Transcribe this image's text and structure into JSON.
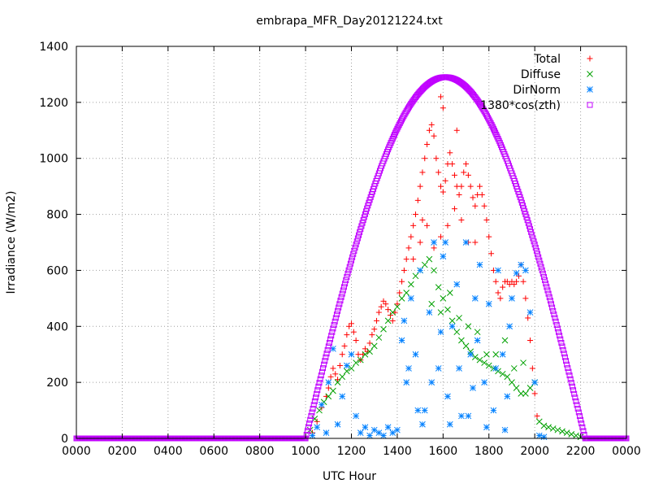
{
  "chart_data": {
    "type": "scatter",
    "title": "embrapa_MFR_Day20121224.txt",
    "xlabel": "UTC Hour",
    "ylabel": "Irradiance (W/m2)",
    "xlim": [
      0,
      24
    ],
    "ylim": [
      0,
      1400
    ],
    "grid": true,
    "legend_position": "top-right",
    "x_ticks": [
      {
        "value": 0,
        "label": "0000"
      },
      {
        "value": 2,
        "label": "0200"
      },
      {
        "value": 4,
        "label": "0400"
      },
      {
        "value": 6,
        "label": "0600"
      },
      {
        "value": 8,
        "label": "0800"
      },
      {
        "value": 10,
        "label": "1000"
      },
      {
        "value": 12,
        "label": "1200"
      },
      {
        "value": 14,
        "label": "1400"
      },
      {
        "value": 16,
        "label": "1600"
      },
      {
        "value": 18,
        "label": "1800"
      },
      {
        "value": 20,
        "label": "2000"
      },
      {
        "value": 22,
        "label": "2200"
      },
      {
        "value": 24,
        "label": "0000"
      }
    ],
    "y_ticks": [
      {
        "value": 0,
        "label": "0"
      },
      {
        "value": 200,
        "label": "200"
      },
      {
        "value": 400,
        "label": "400"
      },
      {
        "value": 600,
        "label": "600"
      },
      {
        "value": 800,
        "label": "800"
      },
      {
        "value": 1000,
        "label": "1000"
      },
      {
        "value": 1200,
        "label": "1200"
      },
      {
        "value": 1400,
        "label": "1400"
      }
    ],
    "series": [
      {
        "name": "Total",
        "marker": "plus",
        "color": "#ff0000",
        "points": [
          [
            10.3,
            20
          ],
          [
            10.5,
            60
          ],
          [
            10.7,
            110
          ],
          [
            10.9,
            150
          ],
          [
            11.0,
            180
          ],
          [
            11.1,
            220
          ],
          [
            11.2,
            250
          ],
          [
            11.3,
            230
          ],
          [
            11.4,
            210
          ],
          [
            11.5,
            260
          ],
          [
            11.6,
            300
          ],
          [
            11.7,
            330
          ],
          [
            11.8,
            370
          ],
          [
            11.9,
            400
          ],
          [
            12.0,
            410
          ],
          [
            12.1,
            380
          ],
          [
            12.2,
            350
          ],
          [
            12.3,
            300
          ],
          [
            12.4,
            280
          ],
          [
            12.5,
            300
          ],
          [
            12.6,
            320
          ],
          [
            12.7,
            310
          ],
          [
            12.8,
            340
          ],
          [
            12.9,
            370
          ],
          [
            13.0,
            390
          ],
          [
            13.1,
            420
          ],
          [
            13.2,
            450
          ],
          [
            13.3,
            470
          ],
          [
            13.4,
            490
          ],
          [
            13.5,
            480
          ],
          [
            13.6,
            460
          ],
          [
            13.7,
            440
          ],
          [
            13.8,
            420
          ],
          [
            13.9,
            450
          ],
          [
            14.0,
            480
          ],
          [
            14.1,
            520
          ],
          [
            14.2,
            560
          ],
          [
            14.3,
            600
          ],
          [
            14.4,
            640
          ],
          [
            14.5,
            680
          ],
          [
            14.6,
            720
          ],
          [
            14.7,
            760
          ],
          [
            14.8,
            800
          ],
          [
            14.9,
            850
          ],
          [
            15.0,
            900
          ],
          [
            15.1,
            950
          ],
          [
            15.2,
            1000
          ],
          [
            15.3,
            1050
          ],
          [
            15.4,
            1100
          ],
          [
            15.5,
            1120
          ],
          [
            15.6,
            1080
          ],
          [
            15.7,
            1000
          ],
          [
            15.8,
            950
          ],
          [
            15.9,
            900
          ],
          [
            16.0,
            880
          ],
          [
            16.1,
            920
          ],
          [
            16.2,
            980
          ],
          [
            16.3,
            1020
          ],
          [
            16.4,
            980
          ],
          [
            16.5,
            940
          ],
          [
            16.6,
            900
          ],
          [
            16.7,
            870
          ],
          [
            16.8,
            900
          ],
          [
            16.9,
            950
          ],
          [
            17.0,
            980
          ],
          [
            17.1,
            940
          ],
          [
            17.2,
            900
          ],
          [
            17.3,
            860
          ],
          [
            17.4,
            830
          ],
          [
            17.5,
            870
          ],
          [
            17.6,
            900
          ],
          [
            17.7,
            870
          ],
          [
            17.8,
            830
          ],
          [
            17.9,
            780
          ],
          [
            18.0,
            720
          ],
          [
            18.1,
            660
          ],
          [
            18.2,
            600
          ],
          [
            18.3,
            560
          ],
          [
            18.4,
            520
          ],
          [
            18.5,
            500
          ],
          [
            18.6,
            540
          ],
          [
            18.7,
            560
          ],
          [
            18.8,
            560
          ],
          [
            18.9,
            550
          ],
          [
            19.0,
            560
          ],
          [
            19.1,
            550
          ],
          [
            19.2,
            560
          ],
          [
            19.3,
            580
          ],
          [
            19.4,
            620
          ],
          [
            19.5,
            560
          ],
          [
            19.6,
            500
          ],
          [
            19.7,
            430
          ],
          [
            19.8,
            350
          ],
          [
            19.9,
            250
          ],
          [
            20.0,
            160
          ],
          [
            20.1,
            80
          ],
          [
            15.3,
            760
          ],
          [
            15.6,
            680
          ],
          [
            15.9,
            720
          ],
          [
            16.2,
            760
          ],
          [
            16.5,
            820
          ],
          [
            16.8,
            780
          ],
          [
            17.1,
            700
          ],
          [
            14.7,
            640
          ],
          [
            15.0,
            700
          ],
          [
            15.9,
            1220
          ],
          [
            16.0,
            1180
          ],
          [
            15.1,
            780
          ],
          [
            16.6,
            1100
          ],
          [
            17.4,
            700
          ]
        ]
      },
      {
        "name": "Diffuse",
        "marker": "cross",
        "color": "#00a000",
        "points": [
          [
            10.2,
            30
          ],
          [
            10.4,
            70
          ],
          [
            10.6,
            100
          ],
          [
            10.8,
            130
          ],
          [
            11.0,
            150
          ],
          [
            11.2,
            170
          ],
          [
            11.4,
            200
          ],
          [
            11.6,
            220
          ],
          [
            11.8,
            240
          ],
          [
            12.0,
            250
          ],
          [
            12.2,
            270
          ],
          [
            12.4,
            280
          ],
          [
            12.6,
            300
          ],
          [
            12.8,
            310
          ],
          [
            13.0,
            330
          ],
          [
            13.2,
            360
          ],
          [
            13.4,
            390
          ],
          [
            13.6,
            420
          ],
          [
            13.8,
            450
          ],
          [
            14.0,
            470
          ],
          [
            14.2,
            500
          ],
          [
            14.4,
            520
          ],
          [
            14.6,
            550
          ],
          [
            14.8,
            580
          ],
          [
            15.0,
            600
          ],
          [
            15.2,
            620
          ],
          [
            15.4,
            640
          ],
          [
            15.6,
            600
          ],
          [
            15.8,
            540
          ],
          [
            16.0,
            500
          ],
          [
            16.2,
            460
          ],
          [
            16.4,
            420
          ],
          [
            16.6,
            380
          ],
          [
            16.8,
            350
          ],
          [
            17.0,
            330
          ],
          [
            17.2,
            310
          ],
          [
            17.4,
            290
          ],
          [
            17.6,
            280
          ],
          [
            17.8,
            270
          ],
          [
            18.0,
            260
          ],
          [
            18.2,
            250
          ],
          [
            18.4,
            240
          ],
          [
            18.6,
            230
          ],
          [
            18.8,
            220
          ],
          [
            19.0,
            200
          ],
          [
            19.2,
            180
          ],
          [
            19.4,
            160
          ],
          [
            19.6,
            160
          ],
          [
            19.8,
            180
          ],
          [
            20.0,
            200
          ],
          [
            20.2,
            60
          ],
          [
            20.4,
            45
          ],
          [
            20.6,
            40
          ],
          [
            20.8,
            35
          ],
          [
            21.0,
            30
          ],
          [
            21.2,
            25
          ],
          [
            21.4,
            20
          ],
          [
            21.6,
            15
          ],
          [
            21.8,
            10
          ],
          [
            22.0,
            5
          ],
          [
            15.5,
            480
          ],
          [
            15.9,
            450
          ],
          [
            16.3,
            520
          ],
          [
            16.7,
            430
          ],
          [
            17.1,
            400
          ],
          [
            17.5,
            380
          ],
          [
            17.9,
            300
          ],
          [
            18.3,
            300
          ],
          [
            18.7,
            350
          ],
          [
            19.1,
            250
          ],
          [
            19.5,
            270
          ]
        ]
      },
      {
        "name": "DirNorm",
        "marker": "star",
        "color": "#0080ff",
        "points": [
          [
            10.3,
            10
          ],
          [
            10.5,
            40
          ],
          [
            10.7,
            120
          ],
          [
            10.9,
            20
          ],
          [
            11.0,
            200
          ],
          [
            11.2,
            320
          ],
          [
            11.4,
            50
          ],
          [
            11.6,
            150
          ],
          [
            11.8,
            260
          ],
          [
            12.0,
            300
          ],
          [
            12.2,
            80
          ],
          [
            12.4,
            20
          ],
          [
            12.6,
            40
          ],
          [
            12.8,
            10
          ],
          [
            13.0,
            30
          ],
          [
            13.2,
            20
          ],
          [
            13.4,
            10
          ],
          [
            13.6,
            40
          ],
          [
            13.8,
            20
          ],
          [
            14.0,
            30
          ],
          [
            14.2,
            350
          ],
          [
            14.3,
            420
          ],
          [
            14.4,
            200
          ],
          [
            14.6,
            500
          ],
          [
            14.8,
            300
          ],
          [
            15.0,
            600
          ],
          [
            15.2,
            100
          ],
          [
            15.4,
            450
          ],
          [
            15.6,
            700
          ],
          [
            15.8,
            250
          ],
          [
            16.0,
            650
          ],
          [
            16.2,
            150
          ],
          [
            16.4,
            400
          ],
          [
            16.6,
            550
          ],
          [
            16.8,
            80
          ],
          [
            17.0,
            700
          ],
          [
            17.2,
            300
          ],
          [
            17.4,
            500
          ],
          [
            17.6,
            620
          ],
          [
            17.8,
            200
          ],
          [
            18.0,
            480
          ],
          [
            18.2,
            100
          ],
          [
            18.4,
            600
          ],
          [
            18.6,
            300
          ],
          [
            18.8,
            150
          ],
          [
            19.0,
            500
          ],
          [
            19.2,
            590
          ],
          [
            19.4,
            620
          ],
          [
            19.6,
            600
          ],
          [
            19.8,
            450
          ],
          [
            20.0,
            200
          ],
          [
            20.2,
            10
          ],
          [
            20.4,
            5
          ],
          [
            15.1,
            50
          ],
          [
            15.5,
            200
          ],
          [
            15.9,
            380
          ],
          [
            16.3,
            50
          ],
          [
            16.7,
            250
          ],
          [
            17.1,
            80
          ],
          [
            17.5,
            350
          ],
          [
            17.9,
            40
          ],
          [
            18.3,
            250
          ],
          [
            18.7,
            30
          ],
          [
            14.9,
            100
          ],
          [
            14.5,
            250
          ],
          [
            16.1,
            700
          ],
          [
            17.3,
            180
          ],
          [
            18.9,
            400
          ]
        ]
      },
      {
        "name": "1380*cos(zth)",
        "marker": "square",
        "color": "#c000ff",
        "curve": {
          "type": "cosine",
          "center": 16.1,
          "halfwidth": 6.1,
          "peak": 1290,
          "xmin": 0,
          "xmax": 24
        }
      }
    ]
  }
}
